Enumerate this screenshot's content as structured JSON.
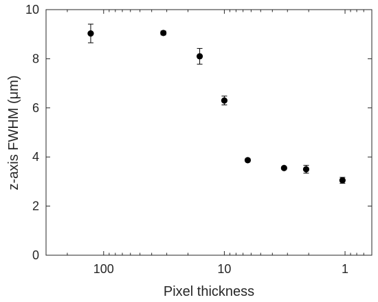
{
  "chart_data": {
    "type": "scatter",
    "title": "",
    "xlabel": "Pixel thickness",
    "ylabel": "z-axis FWHM (μm)",
    "xscale": "log",
    "x_reversed": true,
    "xlim": [
      300,
      0.6
    ],
    "ylim": [
      0,
      10
    ],
    "xticks": [
      100,
      10,
      1
    ],
    "xtick_labels": [
      "100",
      "10",
      "1"
    ],
    "yticks": [
      0,
      2,
      4,
      6,
      8,
      10
    ],
    "ytick_labels": [
      "0",
      "2",
      "4",
      "6",
      "8",
      "10"
    ],
    "grid": false,
    "legend": "none",
    "marker_color": "#000000",
    "series": [
      {
        "x": [
          128,
          32,
          16,
          10,
          6.4,
          3.2,
          2.1,
          1.05
        ],
        "y": [
          9.03,
          9.05,
          8.1,
          6.3,
          3.87,
          3.55,
          3.5,
          3.05
        ],
        "error": [
          0.38,
          0.08,
          0.32,
          0.18,
          0.06,
          0.05,
          0.16,
          0.12
        ]
      }
    ]
  }
}
